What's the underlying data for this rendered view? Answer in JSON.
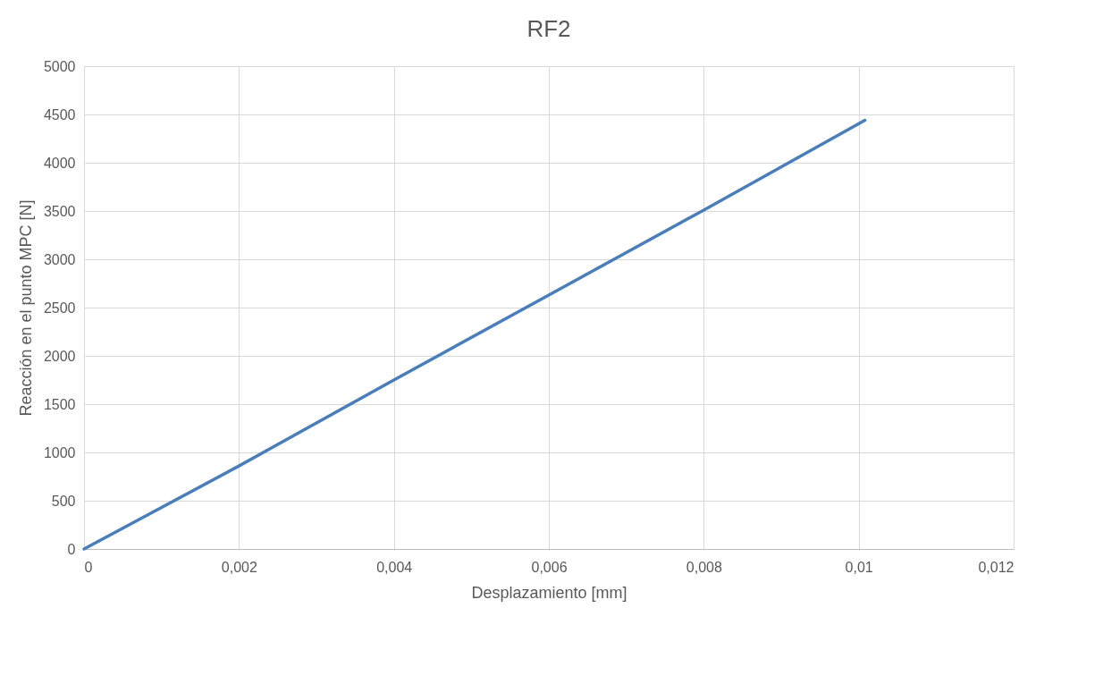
{
  "chart_data": {
    "type": "line",
    "title": "RF2",
    "xlabel": "Desplazamiento [mm]",
    "ylabel": "Reacción en el punto MPC [N]",
    "x": [
      0,
      0.002,
      0.004,
      0.006,
      0.008,
      0.01008
    ],
    "series": [
      {
        "color": "#4a7ebb",
        "values": [
          0,
          860,
          1750,
          2630,
          3510,
          4440
        ]
      }
    ],
    "xlim": [
      0,
      0.012
    ],
    "ylim": [
      0,
      5000
    ],
    "xticks": [
      0,
      {
        "value": 0.002,
        "label": "0,002"
      },
      {
        "value": 0.004,
        "label": "0,004"
      },
      {
        "value": 0.006,
        "label": "0,006"
      },
      {
        "value": 0.008,
        "label": "0,008"
      },
      {
        "value": 0.01,
        "label": "0,01"
      },
      {
        "value": 0.012,
        "label": "0,012"
      }
    ],
    "yticks": [
      0,
      500,
      1000,
      1500,
      2000,
      2500,
      3000,
      3500,
      4000,
      4500,
      5000
    ],
    "grid": true,
    "marker": "none",
    "line_style": "solid"
  }
}
